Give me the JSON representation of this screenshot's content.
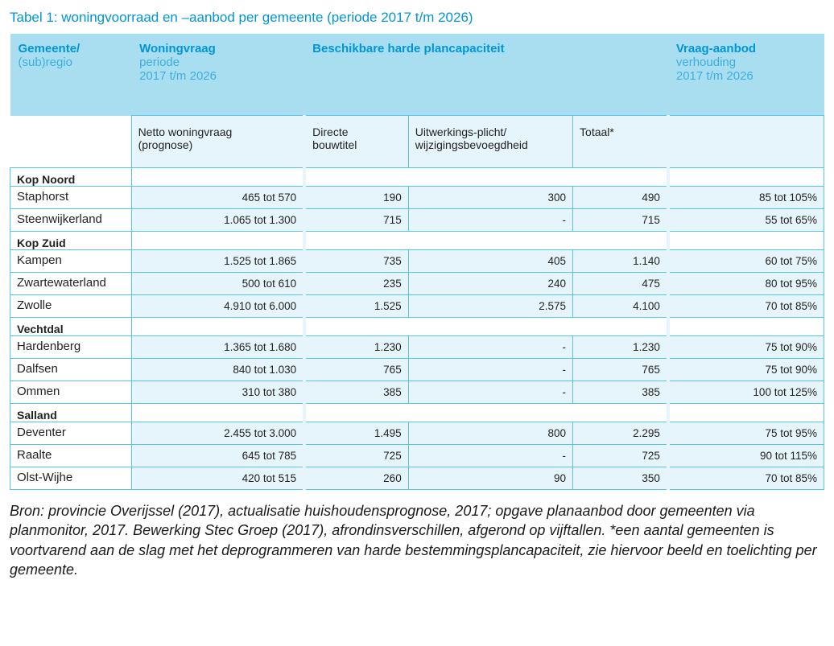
{
  "title": "Tabel 1: woningvoorraad en –aanbod per gemeente (periode 2017 t/m 2026)",
  "headers": {
    "col1_a": "Gemeente/",
    "col1_b": "(sub)regio",
    "col2_a": "Woningvraag",
    "col2_b1": "periode",
    "col2_b2": "2017 t/m 2026",
    "col3_a": "Beschikbare harde plancapaciteit",
    "col6_a": "Vraag-aanbod",
    "col6_b1": "verhouding",
    "col6_b2": "2017 t/m 2026",
    "sub_c2a": "Netto woningvraag",
    "sub_c2b": "(prognose)",
    "sub_c3a": "Directe",
    "sub_c3b": "bouwtitel",
    "sub_c4a": "Uitwerkings-plicht/",
    "sub_c4b": "wijzigingsbevoegdheid",
    "sub_c5": "Totaal*"
  },
  "sections": [
    {
      "name": "Kop Noord",
      "rows": [
        {
          "name": "Staphorst",
          "vraag": "465 tot 570",
          "direct": "190",
          "uitw": "300",
          "totaal": "490",
          "verh": "85 tot 105%"
        },
        {
          "name": "Steenwijkerland",
          "vraag": "1.065 tot 1.300",
          "direct": "715",
          "uitw": "-",
          "totaal": "715",
          "verh": "55 tot 65%"
        }
      ]
    },
    {
      "name": "Kop Zuid",
      "rows": [
        {
          "name": "Kampen",
          "vraag": "1.525 tot 1.865",
          "direct": "735",
          "uitw": "405",
          "totaal": "1.140",
          "verh": "60 tot 75%"
        },
        {
          "name": "Zwartewaterland",
          "vraag": "500 tot 610",
          "direct": "235",
          "uitw": "240",
          "totaal": "475",
          "verh": "80 tot 95%"
        },
        {
          "name": "Zwolle",
          "vraag": "4.910 tot 6.000",
          "direct": "1.525",
          "uitw": "2.575",
          "totaal": "4.100",
          "verh": "70 tot 85%"
        }
      ]
    },
    {
      "name": "Vechtdal",
      "rows": [
        {
          "name": "Hardenberg",
          "vraag": "1.365 tot 1.680",
          "direct": "1.230",
          "uitw": "-",
          "totaal": "1.230",
          "verh": "75 tot 90%"
        },
        {
          "name": "Dalfsen",
          "vraag": "840 tot 1.030",
          "direct": "765",
          "uitw": "-",
          "totaal": "765",
          "verh": "75 tot 90%"
        },
        {
          "name": "Ommen",
          "vraag": "310 tot 380",
          "direct": "385",
          "uitw": "-",
          "totaal": "385",
          "verh": "100 tot 125%"
        }
      ]
    },
    {
      "name": "Salland",
      "rows": [
        {
          "name": "Deventer",
          "vraag": "2.455 tot 3.000",
          "direct": "1.495",
          "uitw": "800",
          "totaal": "2.295",
          "verh": "75 tot 95%"
        },
        {
          "name": "Raalte",
          "vraag": "645 tot 785",
          "direct": "725",
          "uitw": "-",
          "totaal": "725",
          "verh": "90 tot 115%"
        },
        {
          "name": "Olst-Wijhe",
          "vraag": "420 tot 515",
          "direct": "260",
          "uitw": "90",
          "totaal": "350",
          "verh": "70 tot 85%"
        }
      ]
    }
  ],
  "source": "Bron: provincie Overijssel (2017), actualisatie huishoudensprognose, 2017; opgave planaanbod door gemeenten via planmonitor, 2017. Bewerking Stec Groep (2017), afrondinsverschillen, afgerond op vijftallen. *een aantal gemeenten is voortvarend aan de slag met het deprogrammeren van harde bestemmingsplancapaciteit, zie hiervoor beeld en toelichting per gemeente."
}
